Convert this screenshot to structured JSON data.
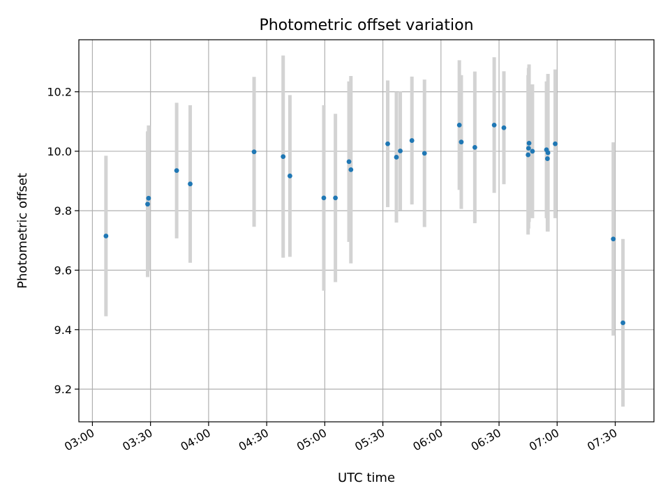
{
  "chart_data": {
    "type": "scatter",
    "title": "Photometric offset variation",
    "xlabel": "UTC time",
    "ylabel": "Photometric offset",
    "xlim": [
      "02:53",
      "07:50"
    ],
    "ylim": [
      9.09,
      10.375
    ],
    "x_ticks": [
      "03:00",
      "03:30",
      "04:00",
      "04:30",
      "05:00",
      "05:30",
      "06:00",
      "06:30",
      "07:00",
      "07:30"
    ],
    "y_ticks": [
      9.2,
      9.4,
      9.6,
      9.8,
      10.0,
      10.2
    ],
    "y_tick_labels": [
      "9.2",
      "9.4",
      "9.6",
      "9.8",
      "10.0",
      "10.2"
    ],
    "grid": true,
    "colors": {
      "point": "#1f77b4",
      "errorbar": "#d3d3d3"
    },
    "series": [
      {
        "points": [
          {
            "x": "03:07",
            "y": 9.715,
            "yerr": 0.27
          },
          {
            "x": "03:28:30",
            "y": 9.822,
            "yerr": 0.245
          },
          {
            "x": "03:29",
            "y": 9.842,
            "yerr": 0.245
          },
          {
            "x": "03:43:30",
            "y": 9.935,
            "yerr": 0.228
          },
          {
            "x": "03:50:30",
            "y": 9.89,
            "yerr": 0.265
          },
          {
            "x": "04:23:30",
            "y": 9.998,
            "yerr": 0.252
          },
          {
            "x": "04:38:30",
            "y": 9.982,
            "yerr": 0.34
          },
          {
            "x": "04:42",
            "y": 9.917,
            "yerr": 0.272
          },
          {
            "x": "04:59:30",
            "y": 9.843,
            "yerr": 0.312
          },
          {
            "x": "05:05:30",
            "y": 9.843,
            "yerr": 0.283
          },
          {
            "x": "05:12:30",
            "y": 9.965,
            "yerr": 0.27
          },
          {
            "x": "05:13:30",
            "y": 9.938,
            "yerr": 0.315
          },
          {
            "x": "05:32:30",
            "y": 10.025,
            "yerr": 0.213
          },
          {
            "x": "05:37",
            "y": 9.98,
            "yerr": 0.22
          },
          {
            "x": "05:39",
            "y": 10.001,
            "yerr": 0.2
          },
          {
            "x": "05:45",
            "y": 10.036,
            "yerr": 0.215
          },
          {
            "x": "05:51:30",
            "y": 9.993,
            "yerr": 0.248
          },
          {
            "x": "06:09:30",
            "y": 10.088,
            "yerr": 0.218
          },
          {
            "x": "06:10:30",
            "y": 10.031,
            "yerr": 0.225
          },
          {
            "x": "06:17:30",
            "y": 10.013,
            "yerr": 0.255
          },
          {
            "x": "06:27:30",
            "y": 10.088,
            "yerr": 0.228
          },
          {
            "x": "06:32:30",
            "y": 10.079,
            "yerr": 0.19
          },
          {
            "x": "06:45",
            "y": 9.988,
            "yerr": 0.268
          },
          {
            "x": "06:45:15",
            "y": 10.01,
            "yerr": 0.27
          },
          {
            "x": "06:45:30",
            "y": 10.027,
            "yerr": 0.265
          },
          {
            "x": "06:47:15",
            "y": 10.0,
            "yerr": 0.225
          },
          {
            "x": "06:54:30",
            "y": 10.005,
            "yerr": 0.23
          },
          {
            "x": "06:55",
            "y": 9.975,
            "yerr": 0.245
          },
          {
            "x": "06:55:15",
            "y": 9.995,
            "yerr": 0.265
          },
          {
            "x": "06:59",
            "y": 10.025,
            "yerr": 0.25
          },
          {
            "x": "07:29",
            "y": 9.705,
            "yerr": 0.325
          },
          {
            "x": "07:34",
            "y": 9.423,
            "yerr": 0.282
          }
        ]
      }
    ]
  }
}
